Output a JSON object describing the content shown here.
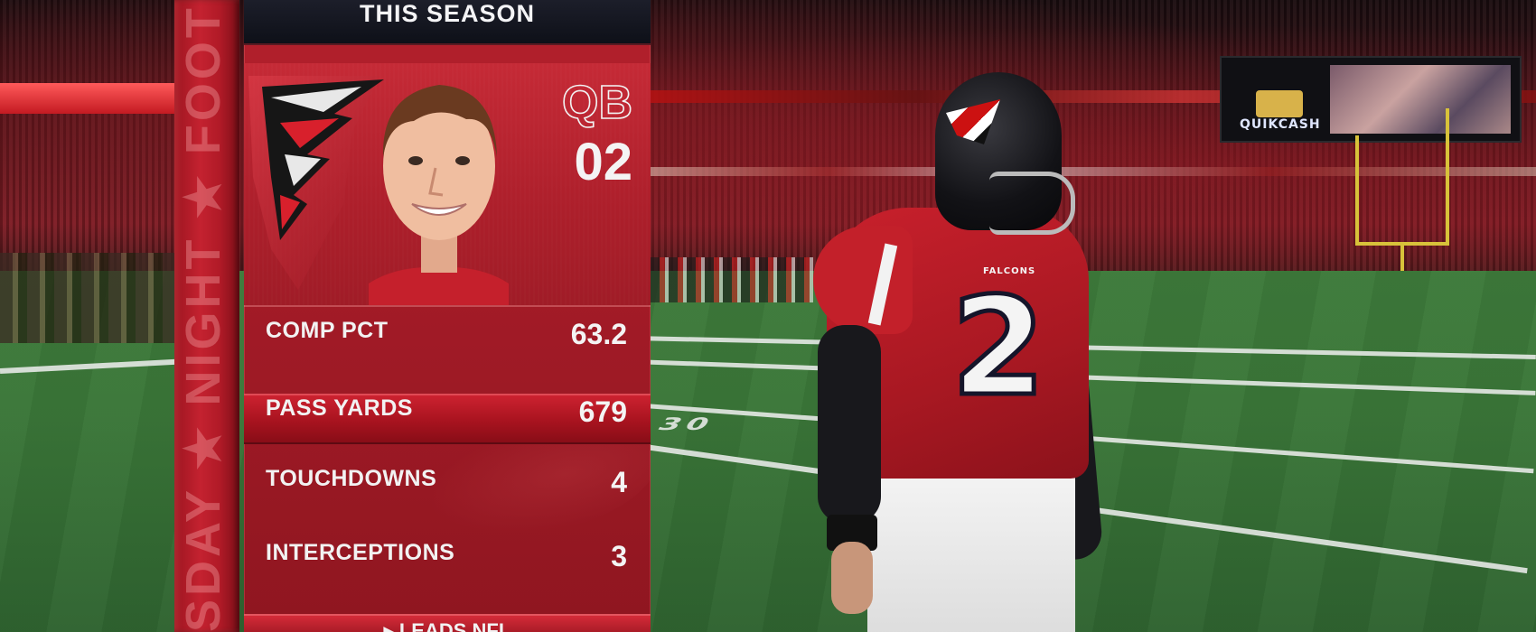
{
  "panel": {
    "title": "THIS SEASON",
    "position": "QB",
    "jersey_number": "02",
    "stats": [
      {
        "label": "COMP PCT",
        "value": "63.2",
        "highlighted": false
      },
      {
        "label": "PASS YARDS",
        "value": "679",
        "highlighted": true
      },
      {
        "label": "TOUCHDOWNS",
        "value": "4",
        "highlighted": false
      },
      {
        "label": "INTERCEPTIONS",
        "value": "3",
        "highlighted": false
      }
    ],
    "footer": "▸ LEADS NFL"
  },
  "side_banner": {
    "text": "SDAY ★ NIGHT ★ FOOT"
  },
  "scene": {
    "player_jersey_number": "2",
    "player_jersey_word": "FALCONS",
    "jumbotron_text": "QUIKCASH",
    "field_number": "30"
  },
  "colors": {
    "panel_red": "#b3202c",
    "header_dark": "#0e1018",
    "field_green": "#3a7638"
  }
}
